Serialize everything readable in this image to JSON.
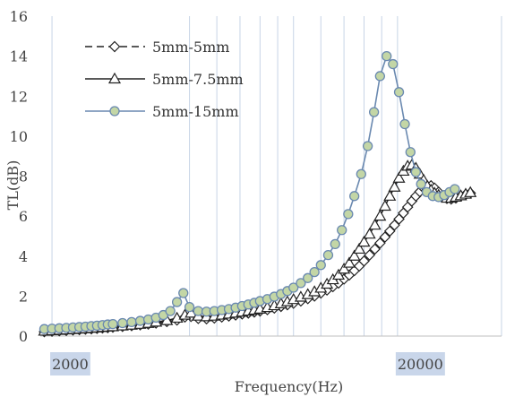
{
  "chart_data": {
    "type": "line",
    "xlabel": "Frequency(Hz)",
    "ylabel": "TL(dB)",
    "x_scale": "log",
    "xlim": [
      1850,
      40000
    ],
    "ylim": [
      0,
      16
    ],
    "y_ticks": [
      0,
      2,
      4,
      6,
      8,
      10,
      12,
      14,
      16
    ],
    "x_tick_labels": [
      {
        "value": 2000,
        "label": "2000"
      },
      {
        "value": 20000,
        "label": "20000"
      }
    ],
    "x_gridlines": [
      2000,
      5000,
      6000,
      7000,
      8000,
      9000,
      10000,
      12000,
      14000,
      16000,
      18000,
      20000,
      40000
    ],
    "grid": true,
    "legend": "top-left",
    "colors": {
      "s1": "#222222",
      "s2": "#222222",
      "s3": "#6a89b0",
      "marker_fill_s3": "#c3d6a6",
      "gridline": "#c7d4e6"
    },
    "series": [
      {
        "name": "5mm-5mm",
        "marker": "diamond",
        "line": "dashed",
        "points": [
          [
            1900,
            0.22
          ],
          [
            2000,
            0.24
          ],
          [
            2100,
            0.26
          ],
          [
            2200,
            0.28
          ],
          [
            2300,
            0.3
          ],
          [
            2400,
            0.32
          ],
          [
            2500,
            0.34
          ],
          [
            2600,
            0.36
          ],
          [
            2700,
            0.38
          ],
          [
            2800,
            0.4
          ],
          [
            2900,
            0.42
          ],
          [
            3000,
            0.44
          ],
          [
            3200,
            0.48
          ],
          [
            3400,
            0.52
          ],
          [
            3600,
            0.56
          ],
          [
            3800,
            0.6
          ],
          [
            4000,
            0.65
          ],
          [
            4300,
            0.72
          ],
          [
            4600,
            0.8
          ],
          [
            4850,
            0.95
          ],
          [
            5050,
            0.98
          ],
          [
            5300,
            0.88
          ],
          [
            5600,
            0.86
          ],
          [
            5900,
            0.9
          ],
          [
            6200,
            0.95
          ],
          [
            6500,
            1.0
          ],
          [
            6800,
            1.05
          ],
          [
            7100,
            1.1
          ],
          [
            7400,
            1.15
          ],
          [
            7700,
            1.2
          ],
          [
            8000,
            1.25
          ],
          [
            8400,
            1.32
          ],
          [
            8800,
            1.4
          ],
          [
            9200,
            1.48
          ],
          [
            9600,
            1.56
          ],
          [
            10000,
            1.64
          ],
          [
            10500,
            1.75
          ],
          [
            11000,
            1.87
          ],
          [
            11500,
            2.0
          ],
          [
            12000,
            2.15
          ],
          [
            12500,
            2.3
          ],
          [
            13000,
            2.47
          ],
          [
            13500,
            2.65
          ],
          [
            14000,
            2.85
          ],
          [
            14500,
            3.05
          ],
          [
            15000,
            3.27
          ],
          [
            15500,
            3.5
          ],
          [
            16000,
            3.75
          ],
          [
            16600,
            4.05
          ],
          [
            17200,
            4.35
          ],
          [
            17800,
            4.65
          ],
          [
            18400,
            4.95
          ],
          [
            19000,
            5.25
          ],
          [
            19600,
            5.55
          ],
          [
            20200,
            5.85
          ],
          [
            20800,
            6.15
          ],
          [
            21400,
            6.45
          ],
          [
            22000,
            6.75
          ],
          [
            22600,
            7.0
          ],
          [
            23200,
            7.22
          ],
          [
            23800,
            7.4
          ],
          [
            24400,
            7.5
          ],
          [
            25000,
            7.52
          ],
          [
            25600,
            7.4
          ],
          [
            26300,
            7.2
          ],
          [
            27000,
            7.0
          ],
          [
            27800,
            6.88
          ],
          [
            28600,
            6.85
          ],
          [
            29500,
            6.9
          ],
          [
            30500,
            7.0
          ],
          [
            31500,
            7.08
          ],
          [
            32500,
            7.15
          ]
        ]
      },
      {
        "name": "5mm-7.5mm",
        "marker": "triangle",
        "line": "solid",
        "points": [
          [
            1900,
            0.25
          ],
          [
            2000,
            0.27
          ],
          [
            2100,
            0.29
          ],
          [
            2200,
            0.31
          ],
          [
            2300,
            0.33
          ],
          [
            2400,
            0.35
          ],
          [
            2500,
            0.37
          ],
          [
            2600,
            0.39
          ],
          [
            2700,
            0.41
          ],
          [
            2800,
            0.43
          ],
          [
            2900,
            0.45
          ],
          [
            3000,
            0.47
          ],
          [
            3200,
            0.51
          ],
          [
            3400,
            0.55
          ],
          [
            3600,
            0.59
          ],
          [
            3800,
            0.64
          ],
          [
            4000,
            0.7
          ],
          [
            4300,
            0.78
          ],
          [
            4600,
            0.9
          ],
          [
            4850,
            1.05
          ],
          [
            5050,
            1.15
          ],
          [
            5300,
            1.0
          ],
          [
            5600,
            0.97
          ],
          [
            5900,
            1.0
          ],
          [
            6200,
            1.05
          ],
          [
            6500,
            1.1
          ],
          [
            6800,
            1.15
          ],
          [
            7100,
            1.2
          ],
          [
            7400,
            1.25
          ],
          [
            7700,
            1.3
          ],
          [
            8000,
            1.35
          ],
          [
            8400,
            1.43
          ],
          [
            8800,
            1.52
          ],
          [
            9200,
            1.62
          ],
          [
            9600,
            1.72
          ],
          [
            10000,
            1.83
          ],
          [
            10500,
            1.95
          ],
          [
            11000,
            2.08
          ],
          [
            11500,
            2.22
          ],
          [
            12000,
            2.4
          ],
          [
            12500,
            2.6
          ],
          [
            13000,
            2.82
          ],
          [
            13500,
            3.05
          ],
          [
            14000,
            3.35
          ],
          [
            14500,
            3.65
          ],
          [
            15000,
            4.0
          ],
          [
            15500,
            4.35
          ],
          [
            16000,
            4.7
          ],
          [
            16600,
            5.1
          ],
          [
            17200,
            5.55
          ],
          [
            17800,
            6.0
          ],
          [
            18400,
            6.5
          ],
          [
            19000,
            7.0
          ],
          [
            19600,
            7.45
          ],
          [
            20200,
            7.9
          ],
          [
            20800,
            8.25
          ],
          [
            21400,
            8.5
          ],
          [
            22000,
            8.55
          ],
          [
            22600,
            8.4
          ],
          [
            23200,
            8.1
          ],
          [
            23800,
            7.8
          ],
          [
            24400,
            7.5
          ],
          [
            25000,
            7.3
          ],
          [
            25600,
            7.15
          ],
          [
            26300,
            7.05
          ],
          [
            27000,
            6.95
          ],
          [
            27800,
            6.9
          ],
          [
            28600,
            6.9
          ],
          [
            29500,
            6.95
          ],
          [
            30500,
            7.02
          ],
          [
            31500,
            7.1
          ],
          [
            32500,
            7.18
          ]
        ]
      },
      {
        "name": "5mm-15mm",
        "marker": "circle",
        "line": "solid",
        "points": [
          [
            1900,
            0.35
          ],
          [
            2000,
            0.37
          ],
          [
            2100,
            0.39
          ],
          [
            2200,
            0.41
          ],
          [
            2300,
            0.43
          ],
          [
            2400,
            0.45
          ],
          [
            2500,
            0.47
          ],
          [
            2600,
            0.5
          ],
          [
            2700,
            0.52
          ],
          [
            2800,
            0.55
          ],
          [
            2900,
            0.58
          ],
          [
            3000,
            0.6
          ],
          [
            3200,
            0.65
          ],
          [
            3400,
            0.7
          ],
          [
            3600,
            0.76
          ],
          [
            3800,
            0.83
          ],
          [
            4000,
            0.92
          ],
          [
            4200,
            1.05
          ],
          [
            4400,
            1.25
          ],
          [
            4600,
            1.7
          ],
          [
            4800,
            2.15
          ],
          [
            5000,
            1.45
          ],
          [
            5300,
            1.25
          ],
          [
            5600,
            1.22
          ],
          [
            5900,
            1.25
          ],
          [
            6200,
            1.3
          ],
          [
            6500,
            1.35
          ],
          [
            6800,
            1.42
          ],
          [
            7100,
            1.5
          ],
          [
            7400,
            1.58
          ],
          [
            7700,
            1.66
          ],
          [
            8000,
            1.75
          ],
          [
            8400,
            1.85
          ],
          [
            8800,
            1.97
          ],
          [
            9200,
            2.1
          ],
          [
            9600,
            2.25
          ],
          [
            10000,
            2.42
          ],
          [
            10500,
            2.65
          ],
          [
            11000,
            2.9
          ],
          [
            11500,
            3.2
          ],
          [
            12000,
            3.55
          ],
          [
            12600,
            4.05
          ],
          [
            13200,
            4.6
          ],
          [
            13800,
            5.3
          ],
          [
            14400,
            6.1
          ],
          [
            15000,
            7.0
          ],
          [
            15700,
            8.1
          ],
          [
            16400,
            9.5
          ],
          [
            17100,
            11.2
          ],
          [
            17800,
            13.0
          ],
          [
            18600,
            14.0
          ],
          [
            19400,
            13.6
          ],
          [
            20200,
            12.2
          ],
          [
            21000,
            10.6
          ],
          [
            21800,
            9.2
          ],
          [
            22600,
            8.2
          ],
          [
            23400,
            7.6
          ],
          [
            24300,
            7.2
          ],
          [
            25300,
            7.0
          ],
          [
            26300,
            6.95
          ],
          [
            27300,
            7.05
          ],
          [
            28300,
            7.2
          ],
          [
            29300,
            7.35
          ]
        ]
      }
    ]
  }
}
